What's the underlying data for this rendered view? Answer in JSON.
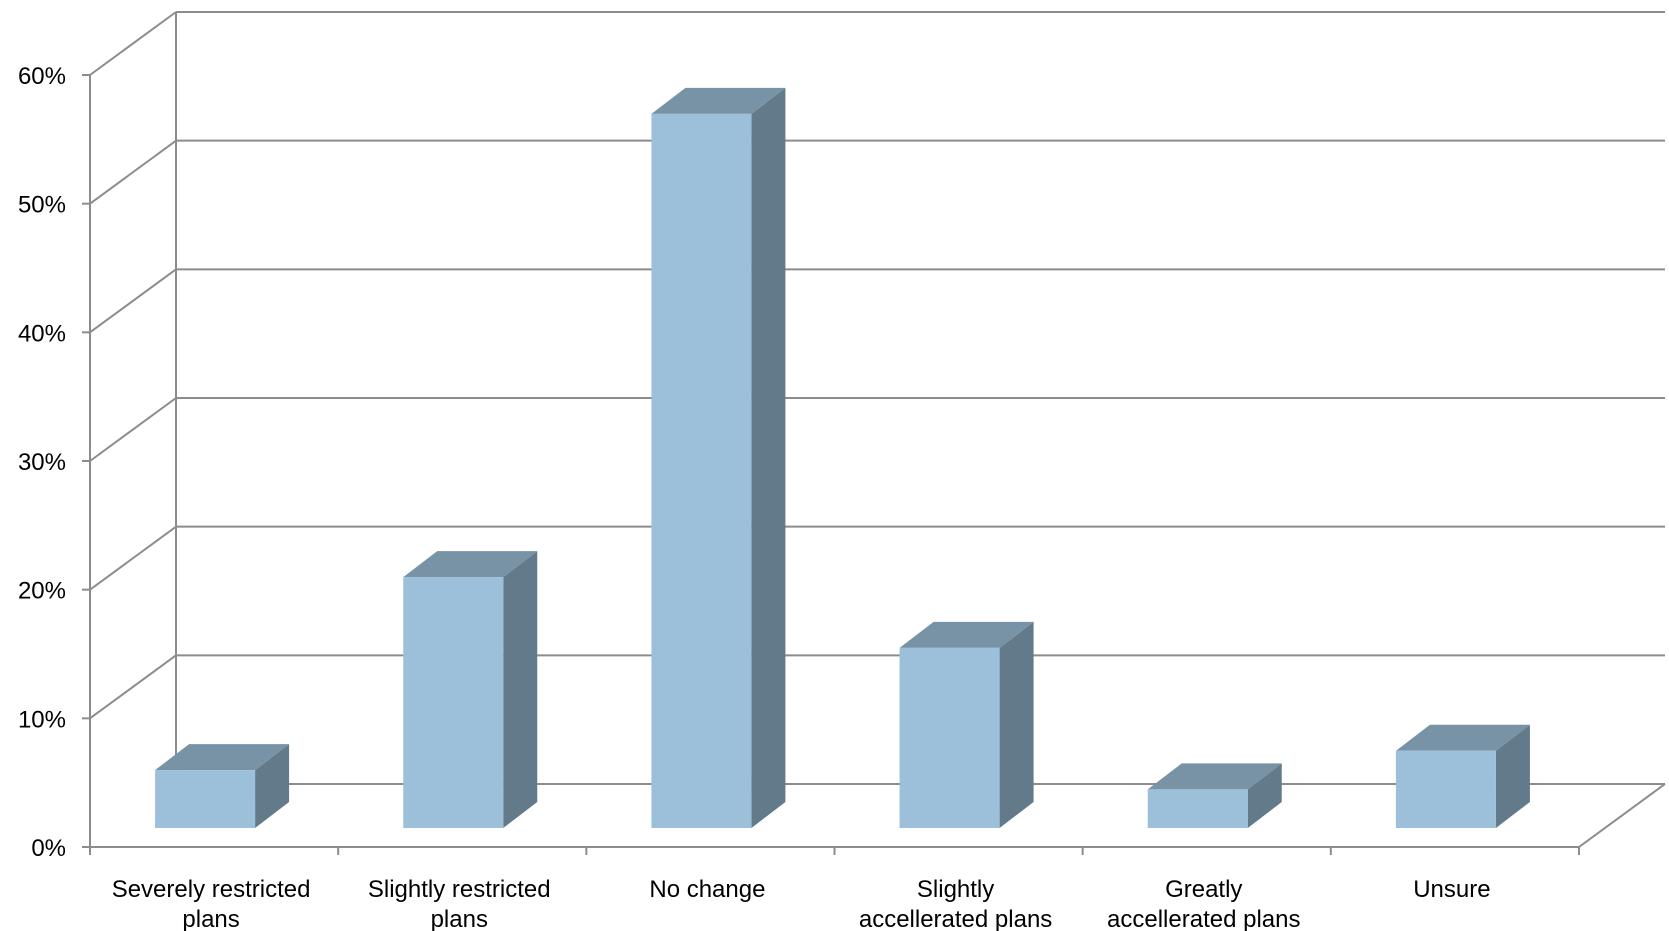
{
  "chart_data": {
    "type": "bar",
    "title": "",
    "xlabel": "",
    "ylabel": "",
    "categories": [
      [
        "Severely restricted",
        "plans"
      ],
      [
        "Slightly restricted",
        "plans"
      ],
      [
        "No change"
      ],
      [
        "Slightly",
        "accellerated plans"
      ],
      [
        "Greatly",
        "accellerated plans"
      ],
      [
        "Unsure"
      ]
    ],
    "values": [
      4.5,
      19.5,
      55.5,
      14,
      3,
      6
    ],
    "ylim": [
      0,
      60
    ],
    "yticks": [
      "0%",
      "10%",
      "20%",
      "30%",
      "40%",
      "50%",
      "60%"
    ],
    "grid": true,
    "three_d": true,
    "colors": {
      "bar_front": "#9dc0da",
      "bar_side": "#637a8a",
      "bar_top": "#7893a5",
      "grid": "#8c8c8c"
    }
  }
}
